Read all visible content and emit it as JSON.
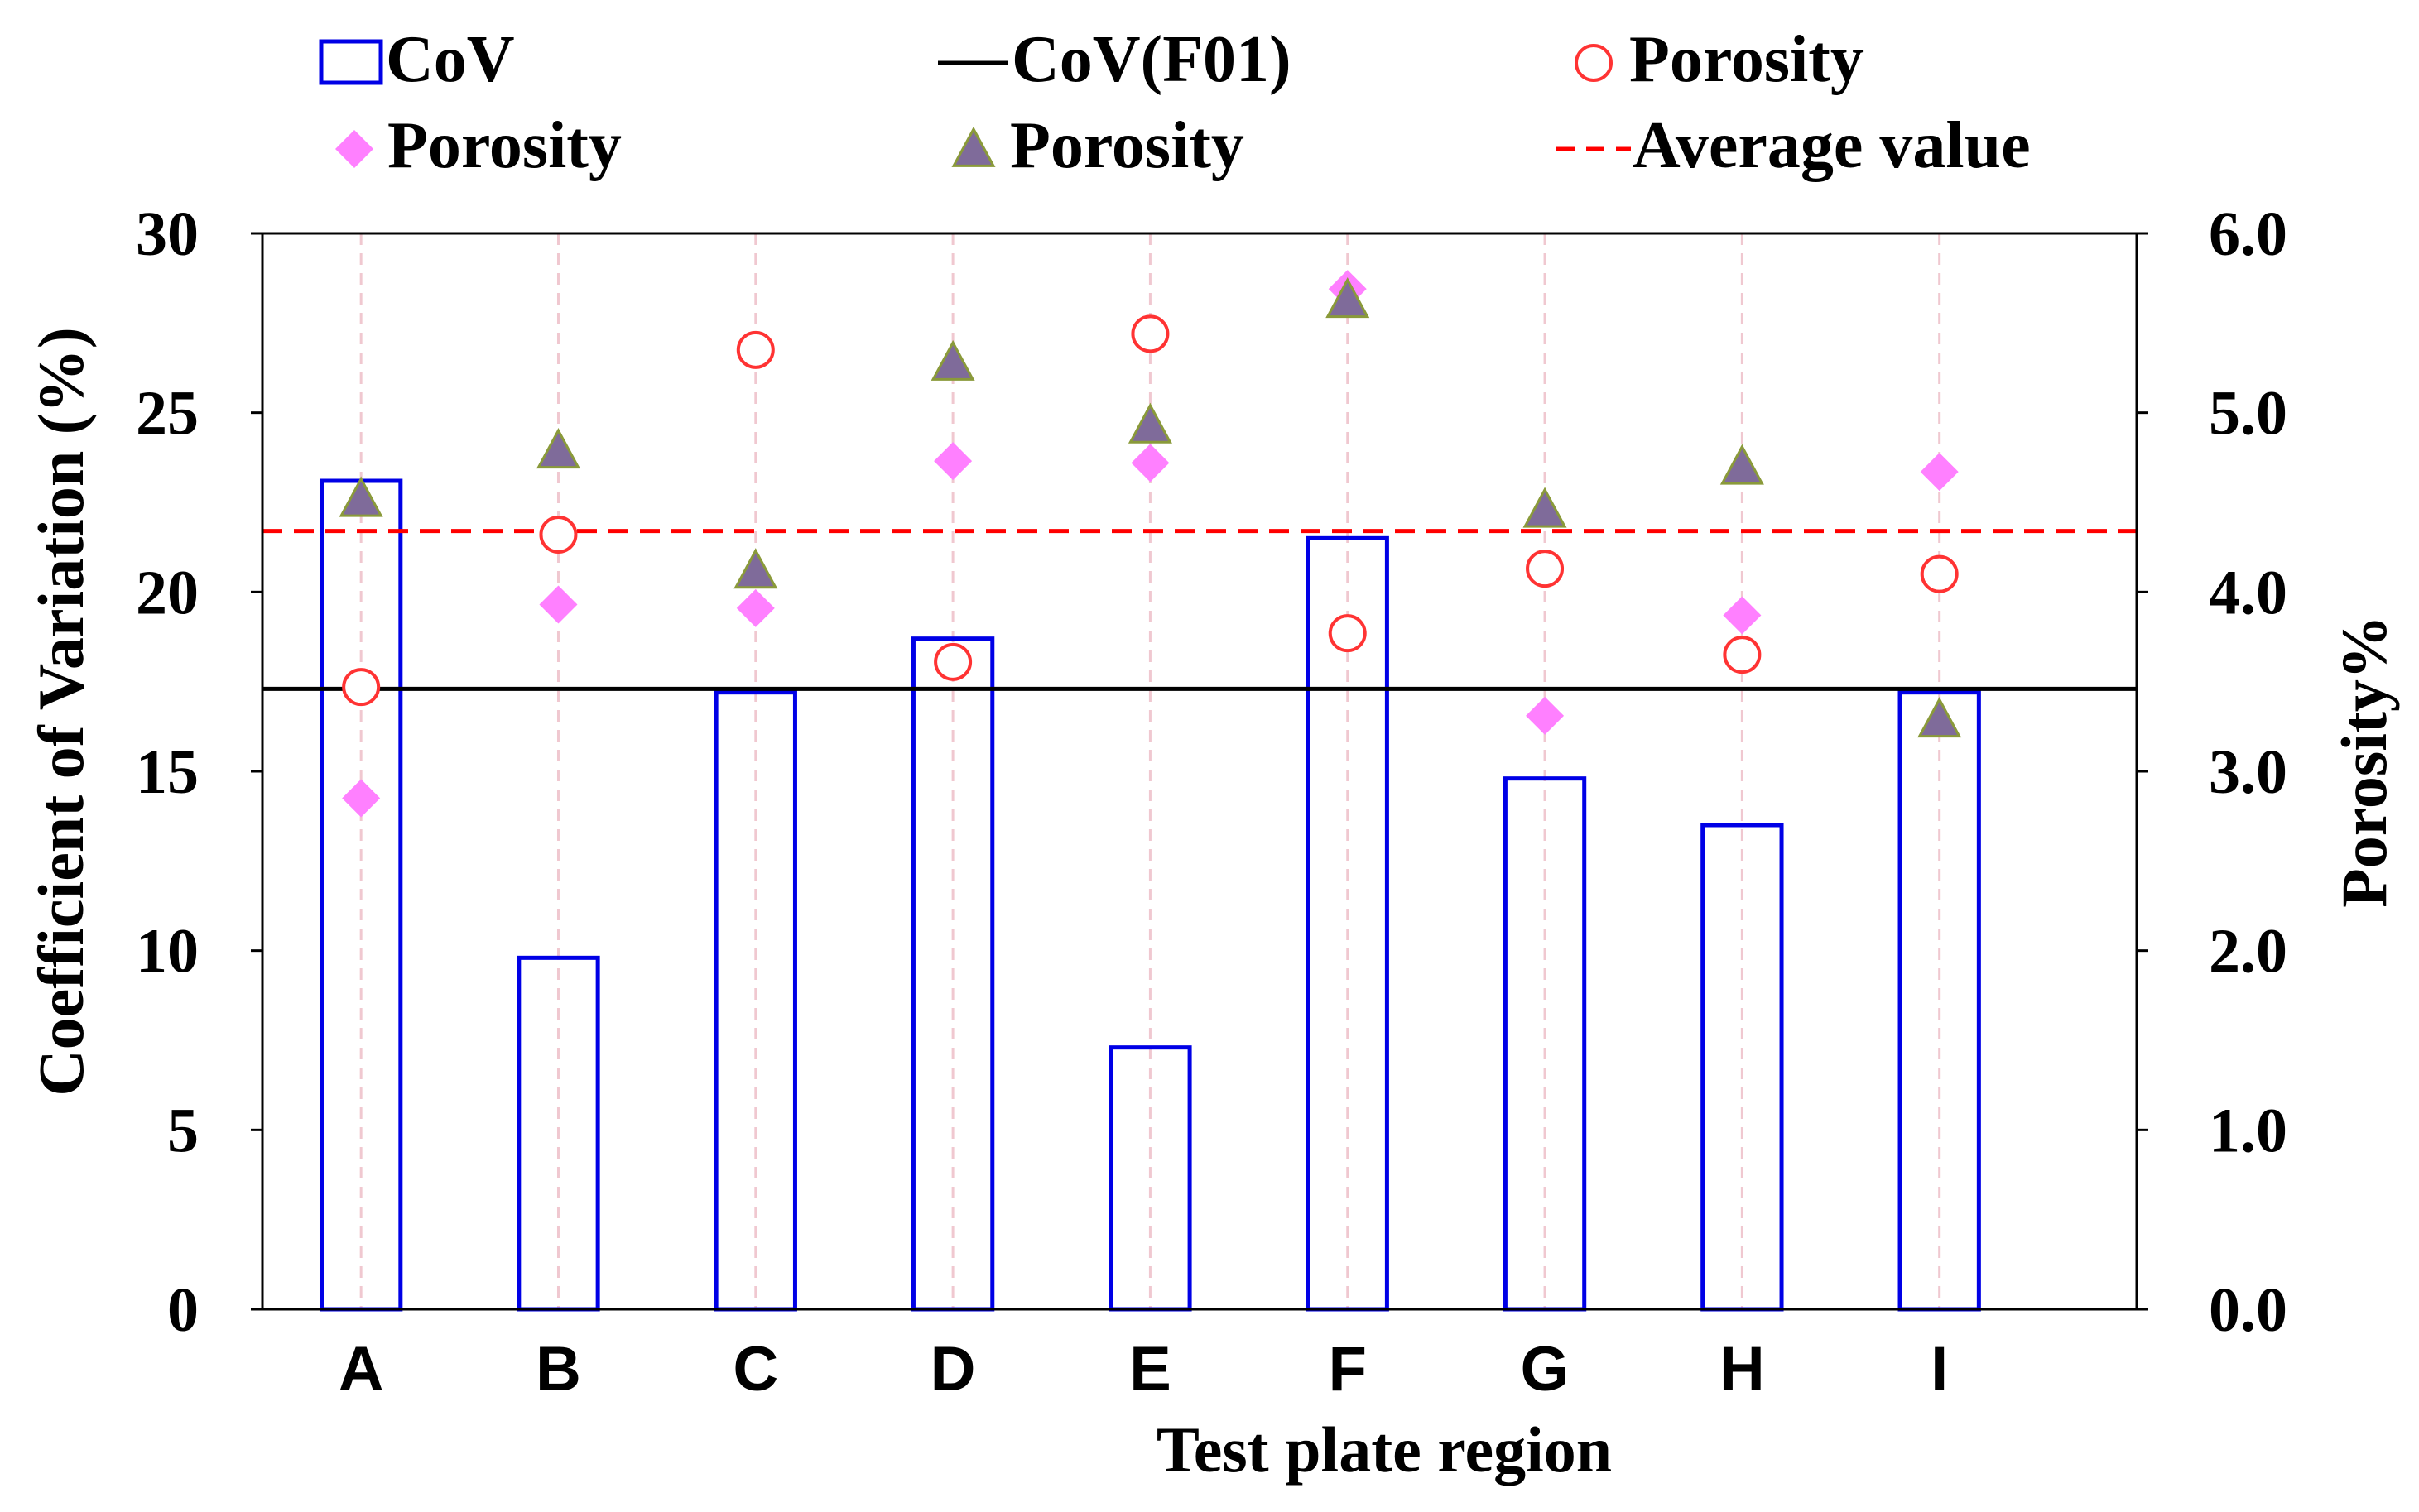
{
  "chart_data": {
    "type": "bar",
    "xlabel": "Test plate region",
    "ylabel": "Coefficient of Variation (%)",
    "y2label": "Porosity%",
    "categories": [
      "A",
      "B",
      "C",
      "D",
      "E",
      "F",
      "G",
      "H",
      "I"
    ],
    "ylim": [
      0,
      30
    ],
    "y2lim": [
      0.0,
      6.0
    ],
    "yticks": [
      "0",
      "5",
      "10",
      "15",
      "20",
      "25",
      "30"
    ],
    "y2ticks": [
      "0.0",
      "1.0",
      "2.0",
      "3.0",
      "4.0",
      "5.0",
      "6.0"
    ],
    "grid": "vertical dashed lines at categories",
    "legend_position": "top",
    "series": [
      {
        "name": "CoV",
        "kind": "bar",
        "axis": "left",
        "color": "#0000e6",
        "values": [
          23.1,
          9.8,
          17.2,
          18.7,
          7.3,
          21.5,
          14.8,
          13.5,
          17.2
        ]
      },
      {
        "name": "CoV(F01)",
        "kind": "hline",
        "axis": "left",
        "color": "#000000",
        "value": 17.3
      },
      {
        "name": "Porosity",
        "kind": "open-circle",
        "axis": "right",
        "color": "#ff3333",
        "values": [
          3.47,
          4.32,
          5.35,
          3.61,
          5.44,
          3.77,
          4.13,
          3.65,
          4.1
        ]
      },
      {
        "name": "Porosity",
        "kind": "diamond",
        "axis": "right",
        "color": "#ff80ff",
        "values": [
          2.85,
          3.93,
          3.91,
          4.73,
          4.72,
          5.69,
          3.31,
          3.87,
          4.67
        ]
      },
      {
        "name": "Porosity",
        "kind": "triangle",
        "axis": "right",
        "color": "#7f6b9a",
        "values": [
          4.52,
          4.79,
          4.12,
          5.28,
          4.93,
          5.63,
          4.46,
          4.7,
          3.29
        ]
      },
      {
        "name": "Average value",
        "kind": "dashed-hline",
        "axis": "right",
        "color": "#ff0000",
        "value": 4.34
      }
    ]
  }
}
